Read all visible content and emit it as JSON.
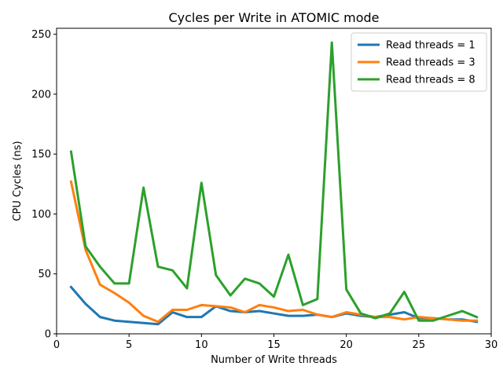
{
  "chart_data": {
    "type": "line",
    "title": "Cycles per Write in ATOMIC mode",
    "xlabel": "Number of Write threads",
    "ylabel": "CPU Cycles (ns)",
    "xlim": [
      0,
      30
    ],
    "ylim": [
      0,
      255
    ],
    "xticks": [
      0,
      5,
      10,
      15,
      20,
      25,
      30
    ],
    "yticks": [
      0,
      50,
      100,
      150,
      200,
      250
    ],
    "grid": false,
    "legend_position": "top-right",
    "x": [
      1,
      2,
      3,
      4,
      5,
      6,
      7,
      8,
      9,
      10,
      11,
      12,
      13,
      14,
      15,
      16,
      17,
      18,
      19,
      20,
      21,
      22,
      23,
      24,
      25,
      26,
      27,
      28,
      29
    ],
    "series": [
      {
        "name": "Read threads = 1",
        "color": "#1f77b4",
        "values": [
          39,
          25,
          14,
          11,
          10,
          9,
          8,
          18,
          14,
          14,
          23,
          19,
          18,
          19,
          17,
          15,
          15,
          16,
          14,
          17,
          15,
          14,
          16,
          18,
          13,
          13,
          12,
          12,
          10
        ]
      },
      {
        "name": "Read threads = 3",
        "color": "#ff7f0e",
        "values": [
          127,
          70,
          41,
          34,
          26,
          15,
          10,
          20,
          20,
          24,
          23,
          22,
          18,
          24,
          22,
          19,
          20,
          16,
          14,
          18,
          16,
          14,
          14,
          12,
          14,
          13,
          12,
          11,
          11
        ]
      },
      {
        "name": "Read threads = 8",
        "color": "#2ca02c",
        "values": [
          152,
          73,
          56,
          42,
          42,
          122,
          56,
          53,
          38,
          126,
          49,
          32,
          46,
          42,
          31,
          66,
          24,
          29,
          243,
          37,
          17,
          13,
          17,
          35,
          11,
          11,
          15,
          19,
          14
        ]
      }
    ]
  }
}
